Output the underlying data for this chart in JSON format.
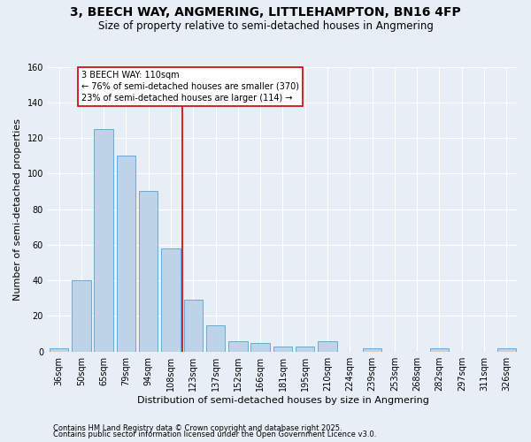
{
  "title": "3, BEECH WAY, ANGMERING, LITTLEHAMPTON, BN16 4FP",
  "subtitle": "Size of property relative to semi-detached houses in Angmering",
  "xlabel": "Distribution of semi-detached houses by size in Angmering",
  "ylabel": "Number of semi-detached properties",
  "categories": [
    "36sqm",
    "50sqm",
    "65sqm",
    "79sqm",
    "94sqm",
    "108sqm",
    "123sqm",
    "137sqm",
    "152sqm",
    "166sqm",
    "181sqm",
    "195sqm",
    "210sqm",
    "224sqm",
    "239sqm",
    "253sqm",
    "268sqm",
    "282sqm",
    "297sqm",
    "311sqm",
    "326sqm"
  ],
  "bar_heights": [
    2,
    40,
    125,
    110,
    90,
    58,
    29,
    15,
    6,
    5,
    3,
    3,
    6,
    0,
    2,
    0,
    0,
    2,
    0,
    0,
    2
  ],
  "bar_color": "#bed3e8",
  "bar_edge_color": "#6aaad4",
  "vline_x_index": 5,
  "vline_color": "#cc0000",
  "annotation_text": "3 BEECH WAY: 110sqm\n← 76% of semi-detached houses are smaller (370)\n23% of semi-detached houses are larger (114) →",
  "annotation_box_color": "#ffffff",
  "annotation_box_edge": "#cc0000",
  "ylim": [
    0,
    160
  ],
  "yticks": [
    0,
    20,
    40,
    60,
    80,
    100,
    120,
    140,
    160
  ],
  "footer1": "Contains HM Land Registry data © Crown copyright and database right 2025.",
  "footer2": "Contains public sector information licensed under the Open Government Licence v3.0.",
  "bg_color": "#e8eef5",
  "grid_color": "#ffffff",
  "title_fontsize": 10,
  "subtitle_fontsize": 8.5,
  "xlabel_fontsize": 8,
  "ylabel_fontsize": 8,
  "tick_fontsize": 7,
  "footer_fontsize": 6,
  "annotation_fontsize": 7
}
